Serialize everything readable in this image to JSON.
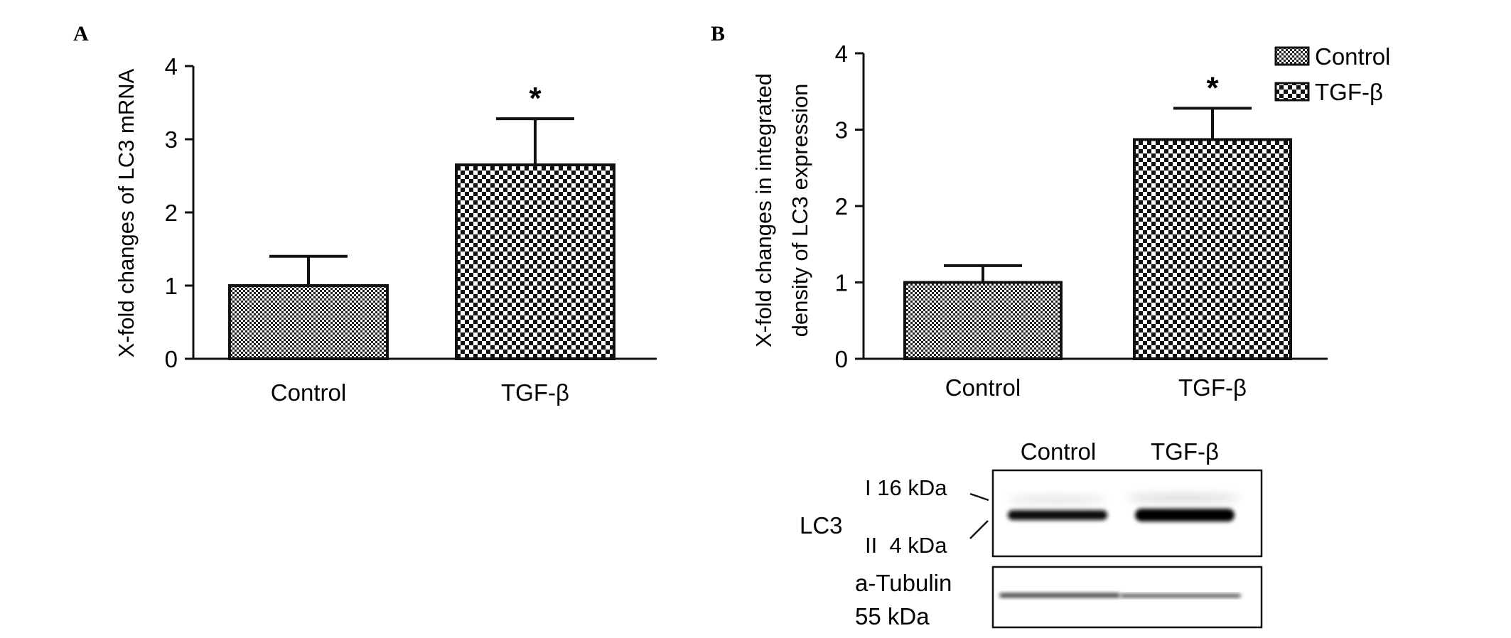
{
  "panels": {
    "a_label": "A",
    "b_label": "B"
  },
  "significance_mark": "*",
  "chart_data": [
    {
      "panel": "A",
      "type": "bar",
      "categories": [
        "Control",
        "TGF-β"
      ],
      "values": [
        1.0,
        2.65
      ],
      "error": [
        0.4,
        0.63
      ],
      "significant": [
        false,
        true
      ],
      "ylabel": "X-fold changes of LC3 mRNA",
      "xlabel": "",
      "ylim": [
        0,
        4
      ],
      "yticks": [
        "0",
        "1",
        "2",
        "3",
        "4"
      ],
      "grid": false
    },
    {
      "panel": "B",
      "type": "bar",
      "categories": [
        "Control",
        "TGF-β"
      ],
      "values": [
        1.0,
        2.87
      ],
      "error": [
        0.22,
        0.41
      ],
      "significant": [
        false,
        true
      ],
      "ylabel_lines": [
        "X-fold changes in integrated",
        "density of LC3 expression"
      ],
      "xlabel": "",
      "ylim": [
        0,
        4
      ],
      "yticks": [
        "0",
        "1",
        "2",
        "3",
        "4"
      ],
      "grid": false,
      "legend": {
        "placement": "top-right",
        "entries": [
          "Control",
          "TGF-β"
        ]
      }
    }
  ],
  "blot": {
    "lanes": [
      "Control",
      "TGF-β"
    ],
    "lc3": {
      "name": "LC3",
      "band_i": "I 16 kDa",
      "band_ii": "II  4 kDa"
    },
    "tubulin": {
      "name": "a-Tubulin",
      "size": "55 kDa"
    }
  }
}
